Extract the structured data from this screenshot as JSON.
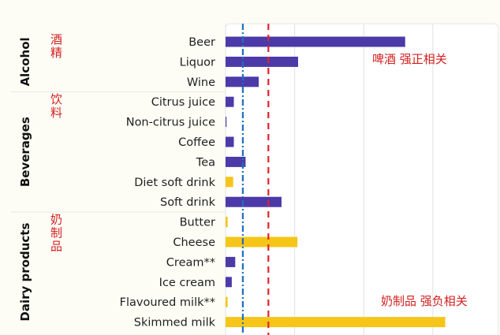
{
  "chart_data": {
    "type": "bar",
    "orientation": "horizontal",
    "categories": [
      "Beer",
      "Liquor",
      "Wine",
      "Citrus juice",
      "Non-citrus juice",
      "Coffee",
      "Tea",
      "Diet soft drink",
      "Soft drink",
      "Butter",
      "Cheese",
      "Cream**",
      "Ice cream",
      "Flavoured milk**",
      "Skimmed milk"
    ],
    "values": [
      2.6,
      1.05,
      0.48,
      0.12,
      0.01,
      0.12,
      0.29,
      0.11,
      0.81,
      0.03,
      1.04,
      0.14,
      0.09,
      0.03,
      3.18
    ],
    "bar_colors": [
      "#4b3aa8",
      "#4b3aa8",
      "#4b3aa8",
      "#4b3aa8",
      "#4b3aa8",
      "#4b3aa8",
      "#4b3aa8",
      "#f5c518",
      "#4b3aa8",
      "#f5c518",
      "#f5c518",
      "#4b3aa8",
      "#4b3aa8",
      "#f5c518",
      "#f5c518"
    ],
    "xlim": [
      0,
      3.9
    ],
    "grid": true,
    "groups": [
      {
        "name": "Alcohol",
        "chinese": "酒\n精",
        "items": [
          "Beer",
          "Liquor",
          "Wine"
        ]
      },
      {
        "name": "Beverages",
        "chinese": "饮\n料",
        "items": [
          "Citrus juice",
          "Non-citrus juice",
          "Coffee",
          "Tea",
          "Diet soft drink",
          "Soft drink"
        ]
      },
      {
        "name": "Dairy products",
        "chinese": "奶\n制\n品",
        "items": [
          "Butter",
          "Cheese",
          "Cream**",
          "Ice cream",
          "Flavoured milk**",
          "Skimmed milk"
        ]
      }
    ],
    "reference_lines": [
      {
        "x": 0.25,
        "color": "#1f6fc2",
        "style": "dash-dot"
      },
      {
        "x": 0.62,
        "color": "#e0242c",
        "style": "dashed"
      }
    ],
    "annotations": [
      {
        "text": "啤酒  强正相关",
        "color": "#d42020"
      },
      {
        "text": "奶制品  强负相关",
        "color": "#d42020"
      }
    ]
  },
  "colors": {
    "purple": "#4b3aa8",
    "yellow": "#f5c518",
    "annotation_red": "#d42020",
    "grid": "#e2e2e2"
  }
}
